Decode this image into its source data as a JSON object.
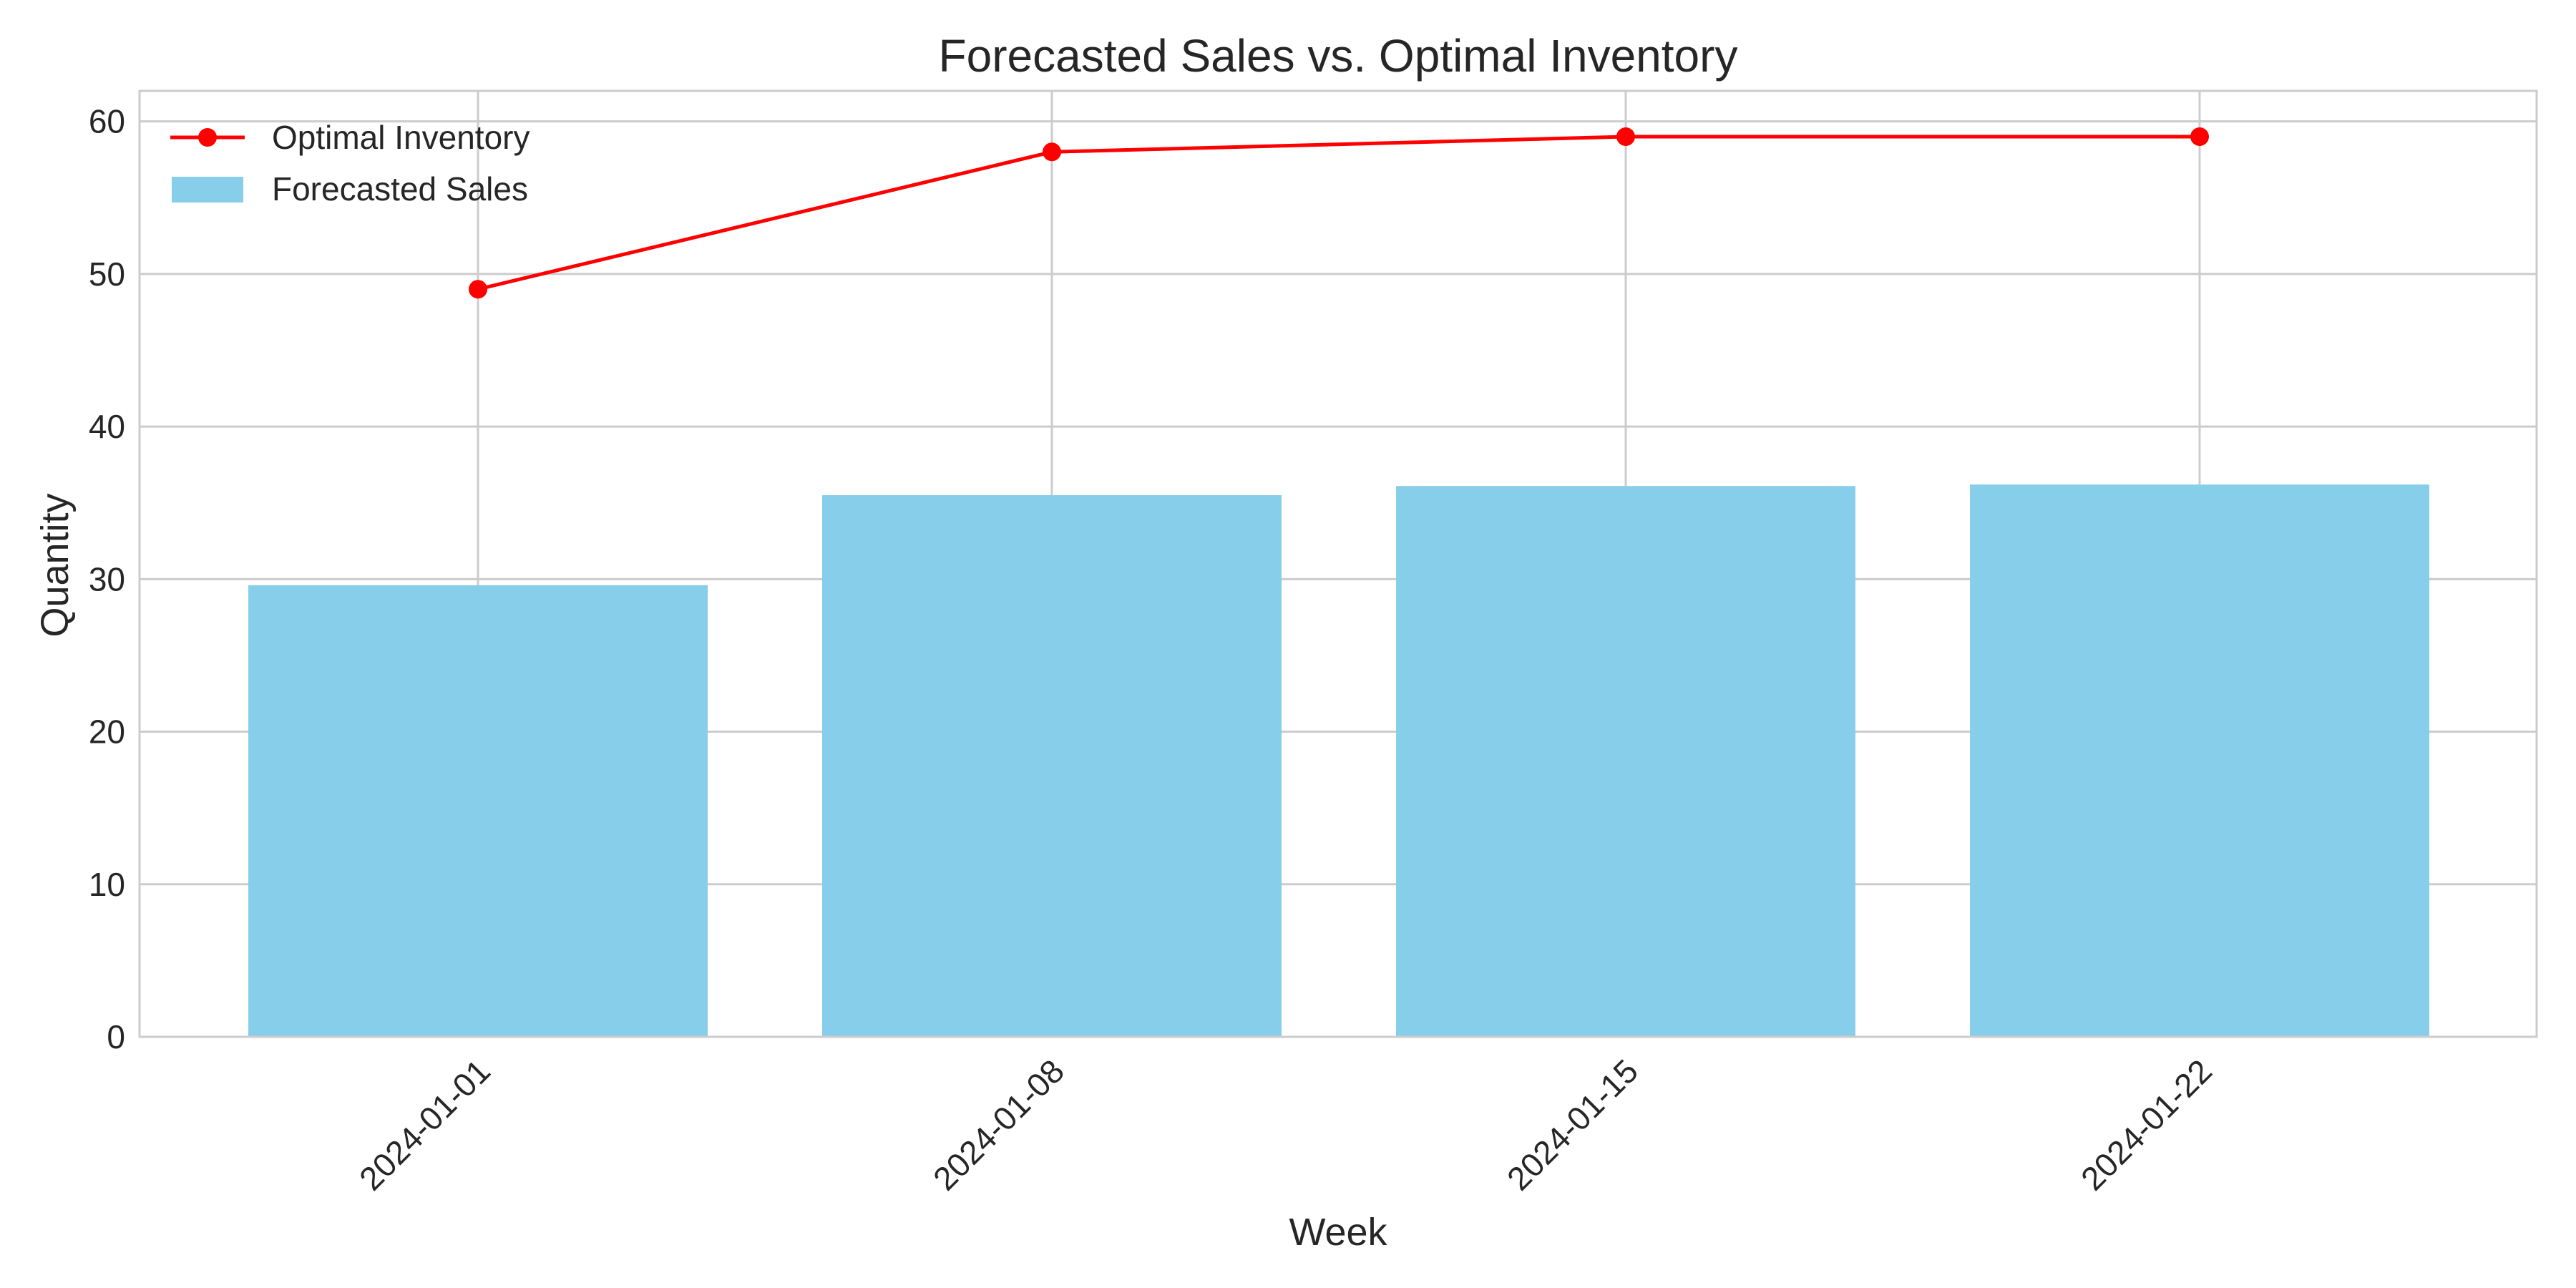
{
  "chart_data": {
    "type": "bar",
    "title": "Forecasted Sales vs. Optimal Inventory",
    "xlabel": "Week",
    "ylabel": "Quantity",
    "categories": [
      "2024-01-01",
      "2024-01-08",
      "2024-01-15",
      "2024-01-22"
    ],
    "ylim": [
      0,
      62
    ],
    "yticks": [
      0,
      10,
      20,
      30,
      40,
      50,
      60
    ],
    "grid": true,
    "legend_position": "top-left",
    "series": [
      {
        "name": "Forecasted Sales",
        "kind": "bar",
        "color": "#87CEEB",
        "values": [
          29.6,
          35.5,
          36.1,
          36.2
        ]
      },
      {
        "name": "Optimal Inventory",
        "kind": "line",
        "marker": "circle",
        "color": "#FF0000",
        "values": [
          49,
          58,
          59,
          59
        ]
      }
    ]
  }
}
